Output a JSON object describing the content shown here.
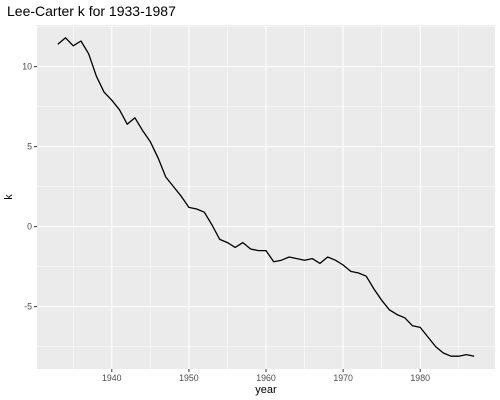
{
  "chart_data": {
    "type": "line",
    "title": "Lee-Carter k for 1933-1987",
    "xlabel": "year",
    "ylabel": "k",
    "xlim": [
      1930.3,
      1989.7
    ],
    "ylim": [
      -8.9,
      12.6
    ],
    "x_ticks": [
      1940,
      1950,
      1960,
      1970,
      1980
    ],
    "y_ticks": [
      -5,
      0,
      5,
      10
    ],
    "grid": true,
    "legend": "none",
    "background_color": "#ebebeb",
    "grid_color": "#ffffff",
    "line_color": "#000000",
    "x": [
      1933,
      1934,
      1935,
      1936,
      1937,
      1938,
      1939,
      1940,
      1941,
      1942,
      1943,
      1944,
      1945,
      1946,
      1947,
      1948,
      1949,
      1950,
      1951,
      1952,
      1953,
      1954,
      1955,
      1956,
      1957,
      1958,
      1959,
      1960,
      1961,
      1962,
      1963,
      1964,
      1965,
      1966,
      1967,
      1968,
      1969,
      1970,
      1971,
      1972,
      1973,
      1974,
      1975,
      1976,
      1977,
      1978,
      1979,
      1980,
      1981,
      1982,
      1983,
      1984,
      1985,
      1986,
      1987
    ],
    "y": [
      11.4,
      11.8,
      11.3,
      11.6,
      10.8,
      9.4,
      8.4,
      7.9,
      7.3,
      6.4,
      6.8,
      6.0,
      5.3,
      4.3,
      3.1,
      2.5,
      1.9,
      1.2,
      1.1,
      0.9,
      0.1,
      -0.8,
      -1.0,
      -1.3,
      -1.0,
      -1.4,
      -1.5,
      -1.5,
      -2.2,
      -2.1,
      -1.9,
      -2.0,
      -2.1,
      -2.0,
      -2.3,
      -1.9,
      -2.1,
      -2.4,
      -2.8,
      -2.9,
      -3.1,
      -3.9,
      -4.6,
      -5.2,
      -5.5,
      -5.7,
      -6.2,
      -6.3,
      -6.9,
      -7.5,
      -7.9,
      -8.1,
      -8.1,
      -8.0,
      -8.1
    ]
  }
}
